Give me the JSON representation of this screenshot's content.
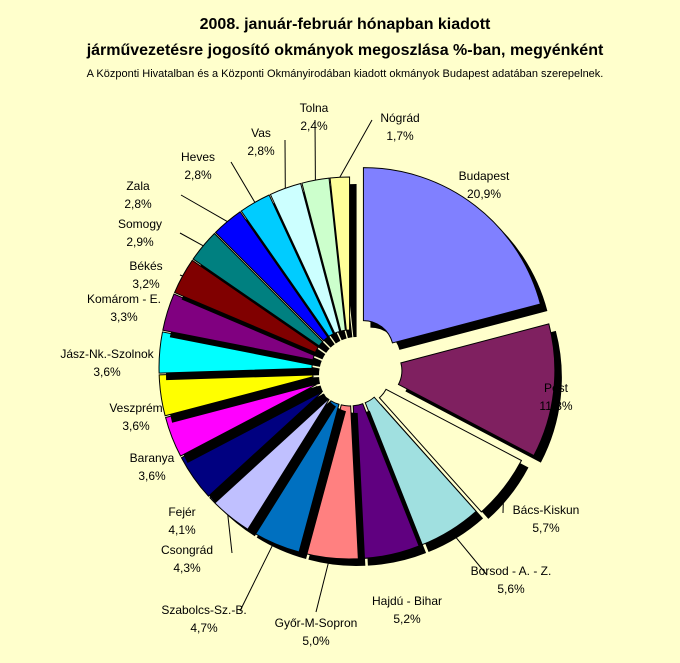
{
  "chart_data": {
    "type": "pie",
    "title_line1": "2008. január-február hónapban kiadott",
    "title_line2": "járművezetésre jogosító okmányok megoszlása %-ban, megyénként",
    "subtitle": "A Központi Hivatalban és a Központi Okmányirodában kiadott okmányok Budapest adatában szerepelnek.",
    "slices": [
      {
        "name": "Budapest",
        "value": 20.9,
        "label": "20,9%",
        "color": "#8080ff"
      },
      {
        "name": "Pest",
        "value": 11.8,
        "label": "11,8%",
        "color": "#7f2060"
      },
      {
        "name": "Bács-Kiskun",
        "value": 5.7,
        "label": "5,7%",
        "color": "#ffffcc"
      },
      {
        "name": "Borsod - A. - Z.",
        "value": 5.6,
        "label": "5,6%",
        "color": "#a0e0e0"
      },
      {
        "name": "Hajdú - Bihar",
        "value": 5.2,
        "label": "5,2%",
        "color": "#600080"
      },
      {
        "name": "Győr-M-Sopron",
        "value": 5.0,
        "label": "5,0%",
        "color": "#ff8080"
      },
      {
        "name": "Szabolcs-Sz.-B.",
        "value": 4.7,
        "label": "4,7%",
        "color": "#0070c0"
      },
      {
        "name": "Csongrád",
        "value": 4.3,
        "label": "4,3%",
        "color": "#c0c0ff"
      },
      {
        "name": "Fejér",
        "value": 4.1,
        "label": "4,1%",
        "color": "#000080"
      },
      {
        "name": "Baranya",
        "value": 3.6,
        "label": "3,6%",
        "color": "#ff00ff"
      },
      {
        "name": "Veszprém",
        "value": 3.6,
        "label": "3,6%",
        "color": "#ffff00"
      },
      {
        "name": "Jász-Nk.-Szolnok",
        "value": 3.6,
        "label": "3,6%",
        "color": "#00ffff"
      },
      {
        "name": "Komárom - E.",
        "value": 3.3,
        "label": "3,3%",
        "color": "#800080"
      },
      {
        "name": "Békés",
        "value": 3.2,
        "label": "3,2%",
        "color": "#800000"
      },
      {
        "name": "Somogy",
        "value": 2.9,
        "label": "2,9%",
        "color": "#008080"
      },
      {
        "name": "Zala",
        "value": 2.8,
        "label": "2,8%",
        "color": "#0000ff"
      },
      {
        "name": "Heves",
        "value": 2.8,
        "label": "2,8%",
        "color": "#00ccff"
      },
      {
        "name": "Vas",
        "value": 2.8,
        "label": "2,8%",
        "color": "#ccffff"
      },
      {
        "name": "Tolna",
        "value": 2.4,
        "label": "2,4%",
        "color": "#ccffcc"
      },
      {
        "name": "Nógrád",
        "value": 1.7,
        "label": "1,7%",
        "color": "#ffff99"
      }
    ]
  }
}
